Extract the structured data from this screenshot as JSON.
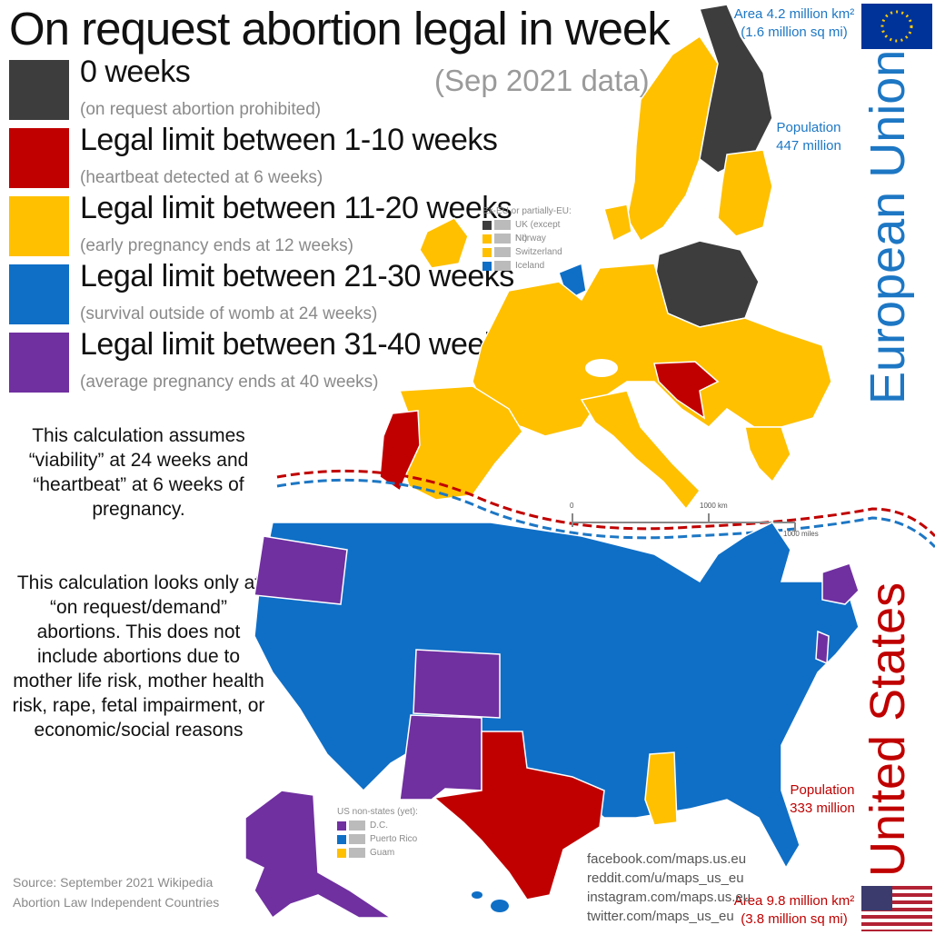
{
  "title": "On request abortion legal in week",
  "subtitle": "(Sep 2021 data)",
  "legend": [
    {
      "label": "0 weeks",
      "note": "(on request abortion prohibited)",
      "color": "#3d3d3d"
    },
    {
      "label": "Legal limit between 1-10 weeks",
      "note": "(heartbeat detected at 6 weeks)",
      "color": "#c00000"
    },
    {
      "label": "Legal limit between 11-20 weeks",
      "note": "(early pregnancy ends at 12 weeks)",
      "color": "#ffc000"
    },
    {
      "label": "Legal limit between 21-30 weeks",
      "note": "(survival outside of womb at 24 weeks)",
      "color": "#0f6fc6"
    },
    {
      "label": "Legal limit between 31-40 weeks",
      "note": "(average pregnancy ends at 40 weeks)",
      "color": "#7030a0"
    }
  ],
  "explain1": "This calculation assumes “viability” at 24 weeks and “heartbeat” at 6 weeks of pregnancy.",
  "explain2": "This calculation looks only at “on request/demand” abortions. This does not include abortions due to mother life risk, mother health risk, rape, fetal impairment, or economic/social reasons",
  "source": [
    "Source: September 2021 Wikipedia",
    "Abortion Law Independent Countries"
  ],
  "social": [
    "facebook.com/maps.us.eu",
    "reddit.com/u/maps_us_eu",
    "instagram.com/maps.us.eu",
    "twitter.com/maps_us_eu"
  ],
  "eu": {
    "name": "European Union",
    "area": "Area 4.2 million km²",
    "area_mi": "(1.6 million sq mi)",
    "pop_label": "Population",
    "pop": "447 million"
  },
  "us": {
    "name": "United States",
    "area": "Area 9.8 million km²",
    "area_mi": "(3.8 million sq mi)",
    "pop_label": "Population",
    "pop": "333 million"
  },
  "ex_eu": {
    "heading": "Ex-EU or partially-EU:",
    "items": [
      {
        "label": "UK (except NI)",
        "color": "#3d3d3d"
      },
      {
        "label": "Norway",
        "color": "#ffc000"
      },
      {
        "label": "Switzerland",
        "color": "#ffc000"
      },
      {
        "label": "Iceland",
        "color": "#0f6fc6"
      }
    ]
  },
  "us_nonstates": {
    "heading": "US non-states (yet):",
    "items": [
      {
        "label": "D.C.",
        "color": "#7030a0"
      },
      {
        "label": "Puerto Rico",
        "color": "#0f6fc6"
      },
      {
        "label": "Guam",
        "color": "#ffc000"
      }
    ]
  },
  "scale": {
    "zero": "0",
    "km": "1000 km",
    "miles": "1000 miles"
  }
}
